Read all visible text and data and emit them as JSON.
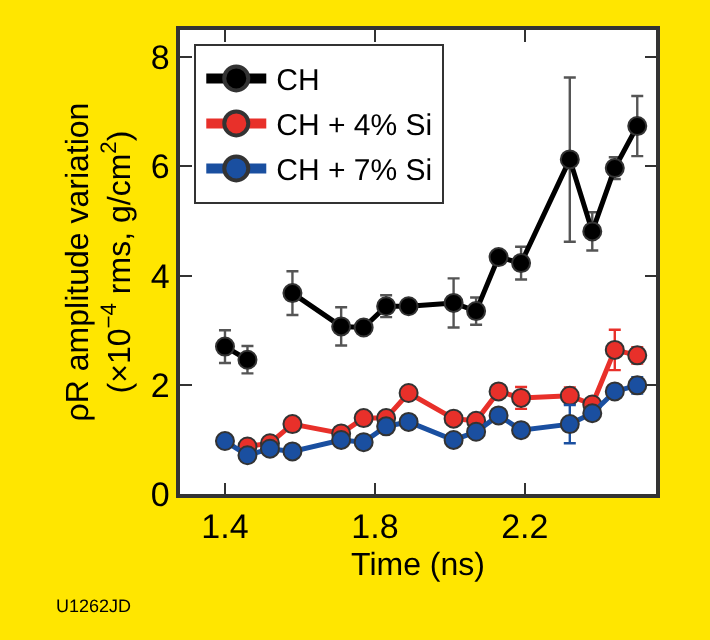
{
  "chart_data": {
    "type": "line",
    "xlabel": "Time (ns)",
    "ylabel": "ρR amplitude variation\n(×10$^{−4}$ rms, g/cm$^{2}$)",
    "annotations": [
      "U1262JD"
    ],
    "xlim": [
      1.28,
      2.55
    ],
    "xticks": [
      1.4,
      1.8,
      2.2
    ],
    "ylim": [
      0,
      8.5
    ],
    "yticks": [
      0,
      2,
      4,
      6,
      8
    ],
    "legend": "top left",
    "marker": "circle",
    "line_style": "solid",
    "series": [
      {
        "name": "CH",
        "color": "#000000",
        "x": [
          1.4,
          1.46,
          1.52,
          1.58,
          1.71,
          1.77,
          1.83,
          1.89,
          2.01,
          2.07,
          2.13,
          2.19,
          2.32,
          2.38,
          2.44,
          2.5
        ],
        "values": [
          2.7,
          2.46,
          null,
          3.68,
          3.07,
          3.05,
          3.44,
          3.44,
          3.5,
          3.35,
          4.34,
          4.23,
          6.13,
          4.81,
          5.97,
          6.74
        ],
        "errors": [
          0.3,
          0.25,
          null,
          0.4,
          0.35,
          null,
          0.2,
          null,
          0.45,
          0.25,
          null,
          0.3,
          [
            4.62,
            7.63
          ],
          0.35,
          0.2,
          0.55
        ]
      },
      {
        "name": "CH + 4% Si",
        "color": "#e8302a",
        "x": [
          1.46,
          1.52,
          1.58,
          1.71,
          1.77,
          1.83,
          1.89,
          2.01,
          2.07,
          2.13,
          2.19,
          2.32,
          2.38,
          2.44,
          2.5
        ],
        "values": [
          0.87,
          0.93,
          1.28,
          1.11,
          1.39,
          1.39,
          1.85,
          1.38,
          1.34,
          1.88,
          1.76,
          1.8,
          1.64,
          2.64,
          2.54
        ],
        "errors": [
          null,
          null,
          null,
          null,
          null,
          null,
          null,
          null,
          null,
          null,
          0.2,
          0.15,
          null,
          0.37,
          0.15
        ]
      },
      {
        "name": "CH + 7% Si",
        "color": "#1a4fa0",
        "x": [
          1.4,
          1.46,
          1.52,
          1.58,
          1.71,
          1.77,
          1.83,
          1.89,
          2.01,
          2.07,
          2.13,
          2.19,
          2.32,
          2.38,
          2.44,
          2.5
        ],
        "values": [
          0.97,
          0.71,
          0.83,
          0.78,
          0.99,
          0.95,
          1.24,
          1.32,
          0.99,
          1.14,
          1.44,
          1.17,
          1.28,
          1.48,
          1.88,
          1.99
        ],
        "errors": [
          null,
          null,
          null,
          null,
          null,
          null,
          null,
          null,
          null,
          null,
          null,
          null,
          0.35,
          null,
          null,
          0.15
        ]
      }
    ]
  }
}
